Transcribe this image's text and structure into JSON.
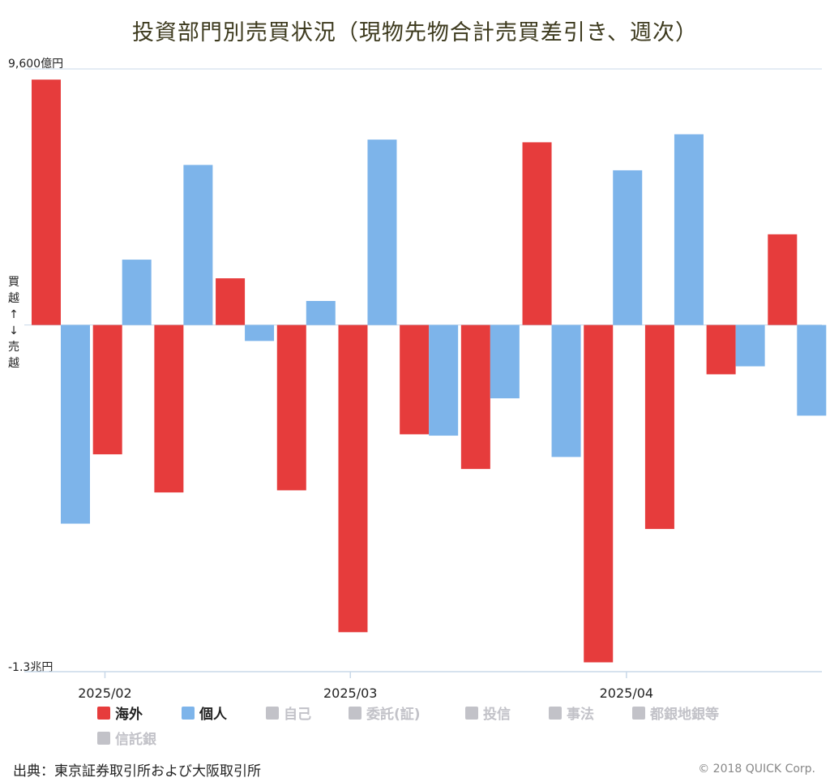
{
  "title": "投資部門別売買状況（現物先物合計売買差引き、週次）",
  "y_max_label": "9,600億円",
  "y_min_label": "-1.3兆円",
  "direction_label": [
    "買",
    "越",
    "↑",
    "↓",
    "売",
    "越"
  ],
  "source": "出典：東京証券取引所および大阪取引所",
  "copyright": "© 2018 QUICK Corp.",
  "colors": {
    "overseas": "#e63c3c",
    "individual": "#7db4ea",
    "disabled": "#c2c2c8",
    "axis": "#c8d8e8"
  },
  "legend": [
    {
      "label": "海外",
      "color": "#e63c3c",
      "active": true
    },
    {
      "label": "個人",
      "color": "#7db4ea",
      "active": true
    },
    {
      "label": "自己",
      "color": "#c2c2c8",
      "active": false
    },
    {
      "label": "委託(証)",
      "color": "#c2c2c8",
      "active": false
    },
    {
      "label": "投信",
      "color": "#c2c2c8",
      "active": false
    },
    {
      "label": "事法",
      "color": "#c2c2c8",
      "active": false
    },
    {
      "label": "都銀地銀等",
      "color": "#c2c2c8",
      "active": false
    },
    {
      "label": "信託銀",
      "color": "#c2c2c8",
      "active": false
    }
  ],
  "chart_data": {
    "type": "bar",
    "unit": "億円",
    "ylim": [
      -13000,
      9600
    ],
    "x_tick_labels": [
      {
        "label": "2025/02",
        "after_week": 1
      },
      {
        "label": "2025/03",
        "after_week": 5
      },
      {
        "label": "2025/04",
        "after_week": 9.5
      }
    ],
    "series": [
      {
        "name": "海外",
        "color": "#e63c3c",
        "values": [
          9200,
          -4850,
          -6280,
          1750,
          -6200,
          -11520,
          -4100,
          -5400,
          6850,
          -12650,
          -7650,
          -1850,
          3400
        ]
      },
      {
        "name": "個人",
        "color": "#7db4ea",
        "values": [
          -7450,
          2450,
          6000,
          -600,
          900,
          6950,
          -4150,
          -2750,
          -4950,
          5800,
          7150,
          -1550,
          -3400
        ]
      }
    ]
  }
}
